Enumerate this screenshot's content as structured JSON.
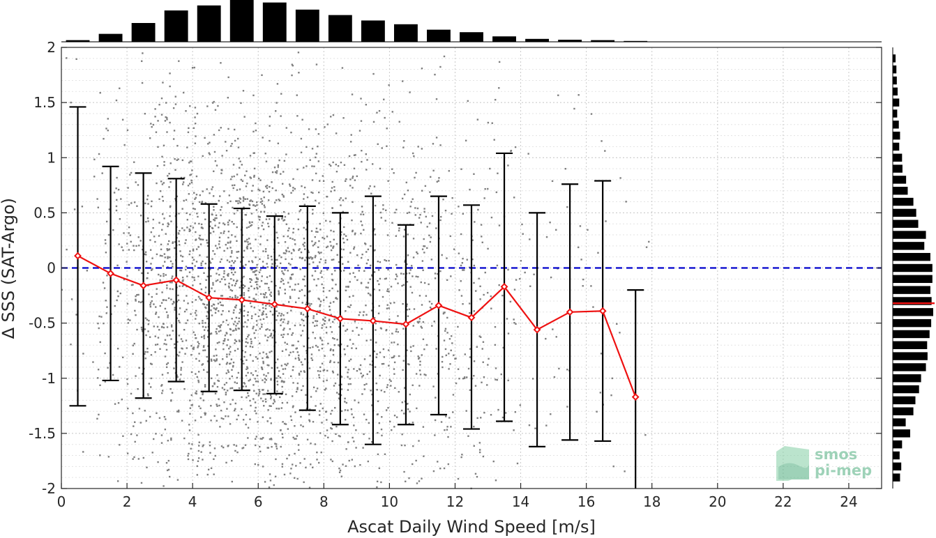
{
  "chart_data": {
    "type": "scatter",
    "title": "",
    "xlabel": "Ascat Daily Wind Speed [m/s]",
    "ylabel": "∆ SSS (SAT-Argo)",
    "xlim": [
      0,
      25
    ],
    "ylim": [
      -2,
      2
    ],
    "x_ticks": [
      0,
      2,
      4,
      6,
      8,
      10,
      12,
      14,
      16,
      18,
      20,
      22,
      24
    ],
    "y_ticks": [
      -2,
      -1.5,
      -1,
      -0.5,
      0,
      0.5,
      1,
      1.5,
      2
    ],
    "y_tick_labels": [
      "-2",
      "-1.5",
      "-1",
      "-0.5",
      "0",
      "0.5",
      "1",
      "1.5",
      "2"
    ],
    "grid": true,
    "reference_line": {
      "y": 0,
      "style": "dashed",
      "color": "#0000cc"
    },
    "colors": {
      "scatter": "#7f7f7f",
      "mean_line": "#ee1111",
      "error_bars": "#000000",
      "histogram": "#000000"
    },
    "binned_stats": {
      "x": [
        0.5,
        1.5,
        2.5,
        3.5,
        4.5,
        5.5,
        6.5,
        7.5,
        8.5,
        9.5,
        10.5,
        11.5,
        12.5,
        13.5,
        14.5,
        15.5,
        16.5,
        17.5
      ],
      "mean": [
        0.11,
        -0.05,
        -0.16,
        -0.11,
        -0.27,
        -0.29,
        -0.33,
        -0.37,
        -0.46,
        -0.48,
        -0.51,
        -0.34,
        -0.45,
        -0.17,
        -0.56,
        -0.4,
        -0.39,
        -1.17
      ],
      "upper": [
        1.46,
        0.92,
        0.86,
        0.81,
        0.58,
        0.54,
        0.47,
        0.56,
        0.5,
        0.65,
        0.39,
        0.65,
        0.57,
        1.04,
        0.5,
        0.76,
        0.79,
        -0.2
      ],
      "lower": [
        -1.25,
        -1.02,
        -1.18,
        -1.03,
        -1.12,
        -1.11,
        -1.14,
        -1.29,
        -1.42,
        -1.6,
        -1.42,
        -1.33,
        -1.46,
        -1.39,
        -1.62,
        -1.56,
        -1.57,
        -2.0
      ]
    },
    "x_histogram": {
      "bins": [
        0.5,
        1.5,
        2.5,
        3.5,
        4.5,
        5.5,
        6.5,
        7.5,
        8.5,
        9.5,
        10.5,
        11.5,
        12.5,
        13.5,
        14.5,
        15.5,
        16.5,
        17.5
      ],
      "relative_counts": [
        0.04,
        0.19,
        0.45,
        0.75,
        0.87,
        1.0,
        0.94,
        0.77,
        0.64,
        0.51,
        0.42,
        0.29,
        0.23,
        0.13,
        0.07,
        0.05,
        0.04,
        0.02
      ]
    },
    "y_histogram": {
      "y_centers": [
        1.9,
        1.8,
        1.7,
        1.6,
        1.5,
        1.4,
        1.3,
        1.2,
        1.1,
        1.0,
        0.9,
        0.8,
        0.7,
        0.6,
        0.5,
        0.4,
        0.3,
        0.2,
        0.1,
        0.0,
        -0.1,
        -0.2,
        -0.3,
        -0.4,
        -0.5,
        -0.6,
        -0.7,
        -0.8,
        -0.9,
        -1.0,
        -1.1,
        -1.2,
        -1.3,
        -1.4,
        -1.5,
        -1.6,
        -1.7,
        -1.8,
        -1.9
      ],
      "relative_counts": [
        0.07,
        0.09,
        0.1,
        0.12,
        0.16,
        0.11,
        0.15,
        0.18,
        0.16,
        0.23,
        0.24,
        0.33,
        0.37,
        0.51,
        0.58,
        0.63,
        0.82,
        0.78,
        0.93,
        0.98,
        0.98,
        0.93,
        0.96,
        1.0,
        0.95,
        0.91,
        0.85,
        0.86,
        0.82,
        0.7,
        0.65,
        0.56,
        0.51,
        0.32,
        0.43,
        0.23,
        0.17,
        0.21,
        0.18
      ]
    },
    "y_median": -0.32
  },
  "logo": {
    "line1": "smos",
    "line2": "pi-mep"
  }
}
